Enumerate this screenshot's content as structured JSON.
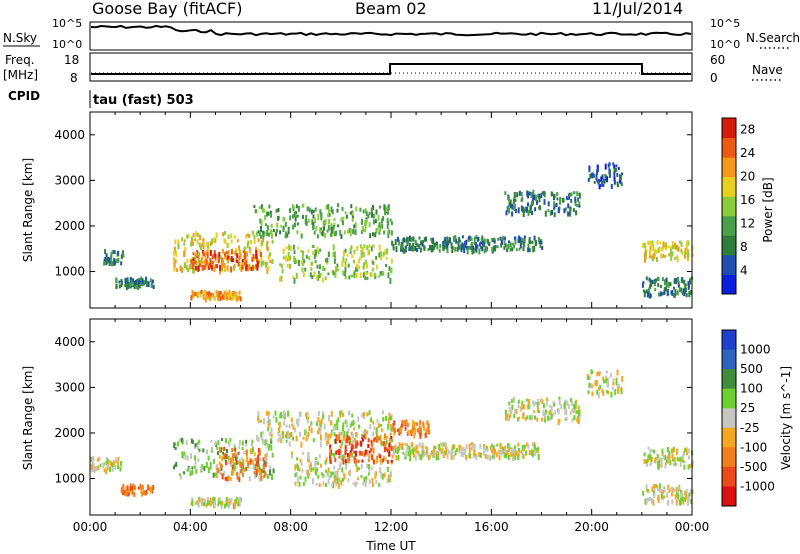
{
  "header": {
    "station": "Goose Bay (fitACF)",
    "beam": "Beam 02",
    "date": "11/Jul/2014"
  },
  "noise_panel": {
    "left_label": "N.Sky",
    "right_label": "N.Search",
    "tick_hi": "10^5",
    "tick_lo": "10^0"
  },
  "freq_panel": {
    "left_label_1": "Freq.",
    "left_label_2": "[MHz]",
    "right_label": "Nave",
    "left_ticks": [
      "18",
      "8"
    ],
    "right_ticks": [
      "60",
      "0"
    ],
    "cpid_label": "CPID",
    "cpid_value": "tau (fast) 503"
  },
  "colors": {
    "power_scale": [
      "#0a1fe0",
      "#1f4fb0",
      "#2f7d3a",
      "#4aa04a",
      "#8ccc3a",
      "#e8d020",
      "#f59a18",
      "#ee5a14",
      "#d41a0a"
    ],
    "velocity_scale": [
      "#1f3fd0",
      "#2f63c0",
      "#3f8c3a",
      "#6cd02e",
      "#c6c6c0",
      "#f5a81e",
      "#f27f1c",
      "#ec4a16",
      "#dc1010"
    ],
    "ground_scatter": "#b8b8b0"
  },
  "chart_data": [
    {
      "type": "heatmap",
      "name": "power",
      "ylabel": "Slant Range [km]",
      "yticks": [
        "1000",
        "2000",
        "3000",
        "4000"
      ],
      "ylim": [
        200,
        4500
      ],
      "xlim": [
        "00:00",
        "24:00"
      ],
      "colorbar": {
        "label": "Power [dB]",
        "ticks": [
          "4",
          "8",
          "12",
          "16",
          "20",
          "24",
          "28"
        ],
        "range": [
          0,
          30
        ]
      },
      "regions": [
        {
          "t": [
            0.5,
            1.3
          ],
          "r": [
            1200,
            1500
          ],
          "level": 2
        },
        {
          "t": [
            1.0,
            2.5
          ],
          "r": [
            700,
            900
          ],
          "level": 2
        },
        {
          "t": [
            3.3,
            7.3
          ],
          "r": [
            1050,
            1900
          ],
          "level": 5
        },
        {
          "t": [
            4.0,
            6.8
          ],
          "r": [
            1100,
            1500
          ],
          "level": 7
        },
        {
          "t": [
            4.0,
            6.0
          ],
          "r": [
            450,
            600
          ],
          "level": 6
        },
        {
          "t": [
            6.5,
            12.0
          ],
          "r": [
            1800,
            2500
          ],
          "level": 3
        },
        {
          "t": [
            7.5,
            12.0
          ],
          "r": [
            850,
            1600
          ],
          "level": 4
        },
        {
          "t": [
            12.0,
            18.0
          ],
          "r": [
            1500,
            1800
          ],
          "level": 2
        },
        {
          "t": [
            16.5,
            19.5
          ],
          "r": [
            2300,
            2800
          ],
          "level": 2
        },
        {
          "t": [
            19.8,
            21.2
          ],
          "r": [
            2900,
            3400
          ],
          "level": 1
        },
        {
          "t": [
            22.0,
            24.0
          ],
          "r": [
            1300,
            1700
          ],
          "level": 5
        },
        {
          "t": [
            22.0,
            24.0
          ],
          "r": [
            500,
            900
          ],
          "level": 2
        }
      ]
    },
    {
      "type": "heatmap",
      "name": "velocity",
      "xlabel": "Time UT",
      "ylabel": "Slant Range [km]",
      "xticks": [
        "00:00",
        "04:00",
        "08:00",
        "12:00",
        "16:00",
        "20:00",
        "00:00"
      ],
      "yticks": [
        "1000",
        "2000",
        "3000",
        "4000"
      ],
      "ylim": [
        200,
        4500
      ],
      "xlim": [
        "00:00",
        "24:00"
      ],
      "colorbar": {
        "label": "Velocity [m s^-1]",
        "ticks": [
          "1000",
          "500",
          "100",
          "25",
          "-25",
          "-100",
          "-500",
          "-1000"
        ]
      },
      "regions": [
        {
          "t": [
            0.0,
            1.2
          ],
          "r": [
            1200,
            1500
          ],
          "level": 4
        },
        {
          "t": [
            1.2,
            2.5
          ],
          "r": [
            700,
            900
          ],
          "level": 6
        },
        {
          "t": [
            3.3,
            7.3
          ],
          "r": [
            1050,
            1900
          ],
          "level": 3
        },
        {
          "t": [
            5.0,
            7.0
          ],
          "r": [
            1000,
            1700
          ],
          "level": 6
        },
        {
          "t": [
            4.0,
            6.0
          ],
          "r": [
            450,
            600
          ],
          "level": 4
        },
        {
          "t": [
            6.5,
            12.0
          ],
          "r": [
            1800,
            2500
          ],
          "level": 4
        },
        {
          "t": [
            8.0,
            12.0
          ],
          "r": [
            900,
            1600
          ],
          "level": 4
        },
        {
          "t": [
            9.5,
            12.0
          ],
          "r": [
            1400,
            2000
          ],
          "level": 7
        },
        {
          "t": [
            12.0,
            13.5
          ],
          "r": [
            2000,
            2300
          ],
          "level": 6
        },
        {
          "t": [
            12.0,
            18.0
          ],
          "r": [
            1500,
            1800
          ],
          "level": 4
        },
        {
          "t": [
            16.5,
            19.5
          ],
          "r": [
            2300,
            2800
          ],
          "level": 4
        },
        {
          "t": [
            19.8,
            21.2
          ],
          "r": [
            2900,
            3400
          ],
          "level": 4
        },
        {
          "t": [
            22.0,
            24.0
          ],
          "r": [
            1300,
            1700
          ],
          "level": 4
        },
        {
          "t": [
            22.0,
            24.0
          ],
          "r": [
            500,
            900
          ],
          "level": 4
        }
      ]
    }
  ]
}
